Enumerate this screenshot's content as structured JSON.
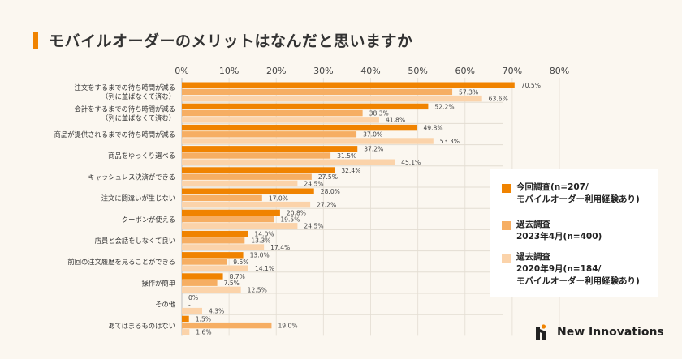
{
  "title": "モバイルオーダーのメリットはなんだと思いますか",
  "brand": {
    "name": "New Innovations",
    "accent": "#f08300"
  },
  "legend": [
    {
      "label": "今回調査(n=207/\nモバイルオーダー利用経験あり)",
      "color": "#f08300"
    },
    {
      "label": "過去調査\n 2023年4月(n=400)",
      "color": "#f6ae63"
    },
    {
      "label": "過去調査\n2020年9月(n=184/\nモバイルオーダー利用経験あり)",
      "color": "#fbd3aa"
    }
  ],
  "chart_data": {
    "type": "bar",
    "orientation": "horizontal",
    "title": "モバイルオーダーのメリットはなんだと思いますか",
    "xlim": [
      0,
      80
    ],
    "ticks": [
      "0%",
      "10%",
      "20%",
      "30%",
      "40%",
      "50%",
      "60%",
      "70%",
      "80%"
    ],
    "grid": true,
    "legend_position": "right",
    "categories": [
      "注文をするまでの待ち時間が減る\n（列に並ばなくて済む）",
      "会計をするまでの待ち時間が減る\n（列に並ばなくて済む）",
      "商品が提供されるまでの待ち時間が減る",
      "商品をゆっくり選べる",
      "キャッシュレス決済ができる",
      "注文に間違いが生じない",
      "クーポンが使える",
      "店員と会話をしなくて良い",
      "前回の注文履歴を見ることができる",
      "操作が簡単",
      "その他",
      "あてはまるものはない"
    ],
    "series": [
      {
        "name": "今回調査(n=207/モバイルオーダー利用経験あり)",
        "color": "#f08300",
        "values": [
          70.5,
          52.2,
          49.8,
          37.2,
          32.4,
          28.0,
          20.8,
          14.0,
          13.0,
          8.7,
          0,
          1.5
        ],
        "labels": [
          "70.5%",
          "52.2%",
          "49.8%",
          "37.2%",
          "32.4%",
          "28.0%",
          "20.8%",
          "14.0%",
          "13.0%",
          "8.7%",
          "0%",
          "1.5%"
        ]
      },
      {
        "name": "過去調査 2023年4月(n=400)",
        "color": "#f6ae63",
        "values": [
          57.3,
          38.3,
          37.0,
          31.5,
          27.5,
          17.0,
          19.5,
          13.3,
          9.5,
          7.5,
          null,
          19.0
        ],
        "labels": [
          "57.3%",
          "38.3%",
          "37.0%",
          "31.5%",
          "27.5%",
          "17.0%",
          "19.5%",
          "13.3%",
          "9.5%",
          "7.5%",
          "-",
          "19.0%"
        ]
      },
      {
        "name": "過去調査 2020年9月(n=184/モバイルオーダー利用経験あり)",
        "color": "#fbd3aa",
        "values": [
          63.6,
          41.8,
          53.3,
          45.1,
          24.5,
          27.2,
          24.5,
          17.4,
          14.1,
          12.5,
          4.3,
          1.6
        ],
        "labels": [
          "63.6%",
          "41.8%",
          "53.3%",
          "45.1%",
          "24.5%",
          "27.2%",
          "24.5%",
          "17.4%",
          "14.1%",
          "12.5%",
          "4.3%",
          "1.6%"
        ]
      }
    ]
  }
}
